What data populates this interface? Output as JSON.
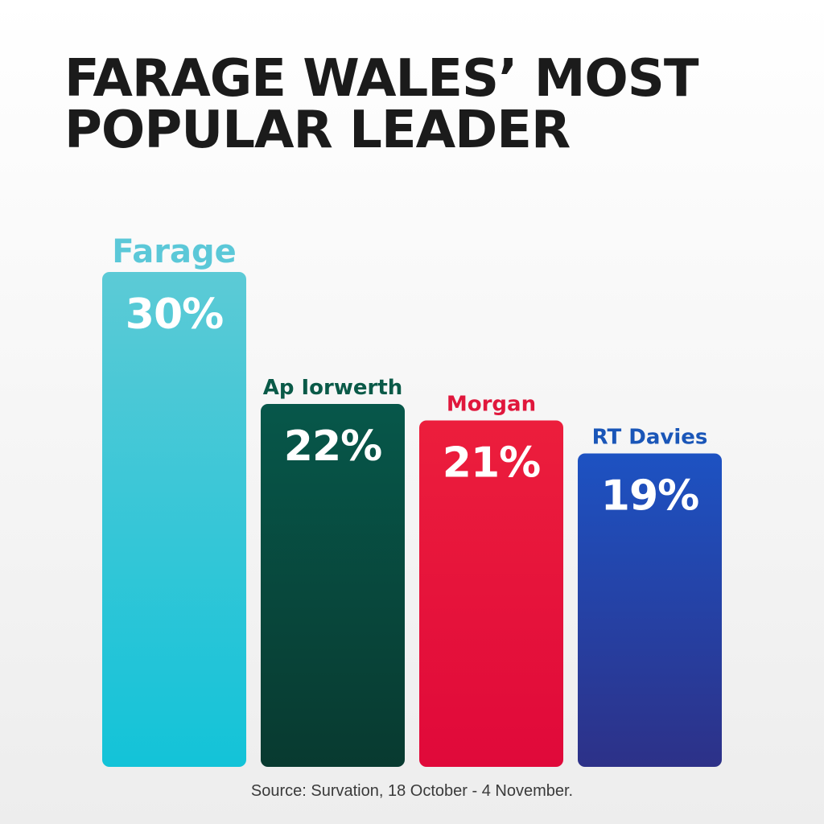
{
  "title": "FARAGE WALES’ MOST\nPOPULAR LEADER",
  "source": "Source: Survation, 18 October - 4 November.",
  "chart_data": {
    "type": "bar",
    "categories": [
      "Farage",
      "Ap Iorwerth",
      "Morgan",
      "RT Davies"
    ],
    "values": [
      30,
      22,
      21,
      19
    ],
    "value_labels": [
      "30%",
      "22%",
      "21%",
      "19%"
    ],
    "label_colors": [
      "#5bc8d8",
      "#0a5a48",
      "#e0173c",
      "#1a56b8"
    ],
    "bar_colors": [
      [
        "#5ccad6",
        "#13c3d8"
      ],
      [
        "#07574a",
        "#083a30"
      ],
      [
        "#ec1e3c",
        "#e0093a"
      ],
      [
        "#1d52c2",
        "#2d3188"
      ]
    ],
    "title": "FARAGE WALES’ MOST POPULAR LEADER",
    "xlabel": "",
    "ylabel": "",
    "ylim": [
      0,
      30
    ],
    "grid": false,
    "legend": false
  }
}
